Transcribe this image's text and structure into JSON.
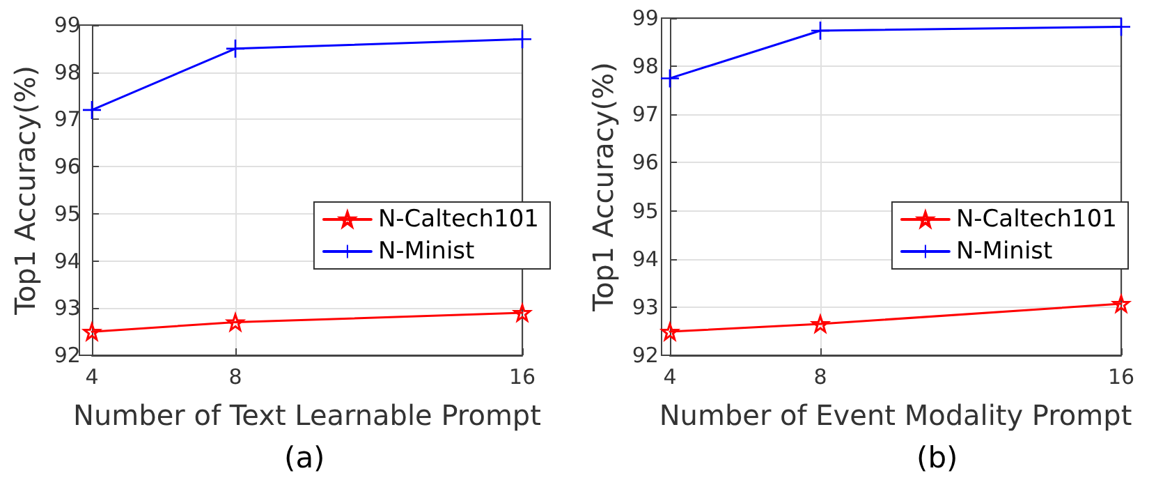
{
  "chart_data": [
    {
      "type": "line",
      "xlabel": "Number of Text Learnable Prompt",
      "ylabel": "Top1 Accuracy(%)",
      "annotations": [
        "(a)"
      ],
      "x": [
        4,
        8,
        16
      ],
      "xlim": [
        4,
        16
      ],
      "xticks": [
        4,
        8,
        16
      ],
      "ylim": [
        92,
        99
      ],
      "yticks": [
        92,
        93,
        94,
        95,
        96,
        97,
        98,
        99
      ],
      "grid": true,
      "legend": "right",
      "series": [
        {
          "name": "N-Caltech101",
          "color": "#ff0000",
          "marker": "star",
          "values": [
            92.5,
            92.7,
            92.9
          ]
        },
        {
          "name": "N-Minist",
          "color": "#0000ff",
          "marker": "cross",
          "values": [
            97.2,
            98.5,
            98.7
          ]
        }
      ]
    },
    {
      "type": "line",
      "xlabel": "Number of Event Modality Prompt",
      "ylabel": "Top1 Accuracy(%)",
      "annotations": [
        "(b)"
      ],
      "x": [
        4,
        8,
        16
      ],
      "xlim": [
        4,
        16
      ],
      "xticks": [
        4,
        8,
        16
      ],
      "ylim": [
        92,
        99
      ],
      "yticks": [
        92,
        93,
        94,
        95,
        96,
        97,
        98,
        99
      ],
      "grid": true,
      "legend": "right",
      "series": [
        {
          "name": "N-Caltech101",
          "color": "#ff0000",
          "marker": "star",
          "values": [
            92.49,
            92.65,
            93.07
          ]
        },
        {
          "name": "N-Minist",
          "color": "#0000ff",
          "marker": "cross",
          "values": [
            97.75,
            98.74,
            98.82
          ]
        }
      ]
    }
  ]
}
